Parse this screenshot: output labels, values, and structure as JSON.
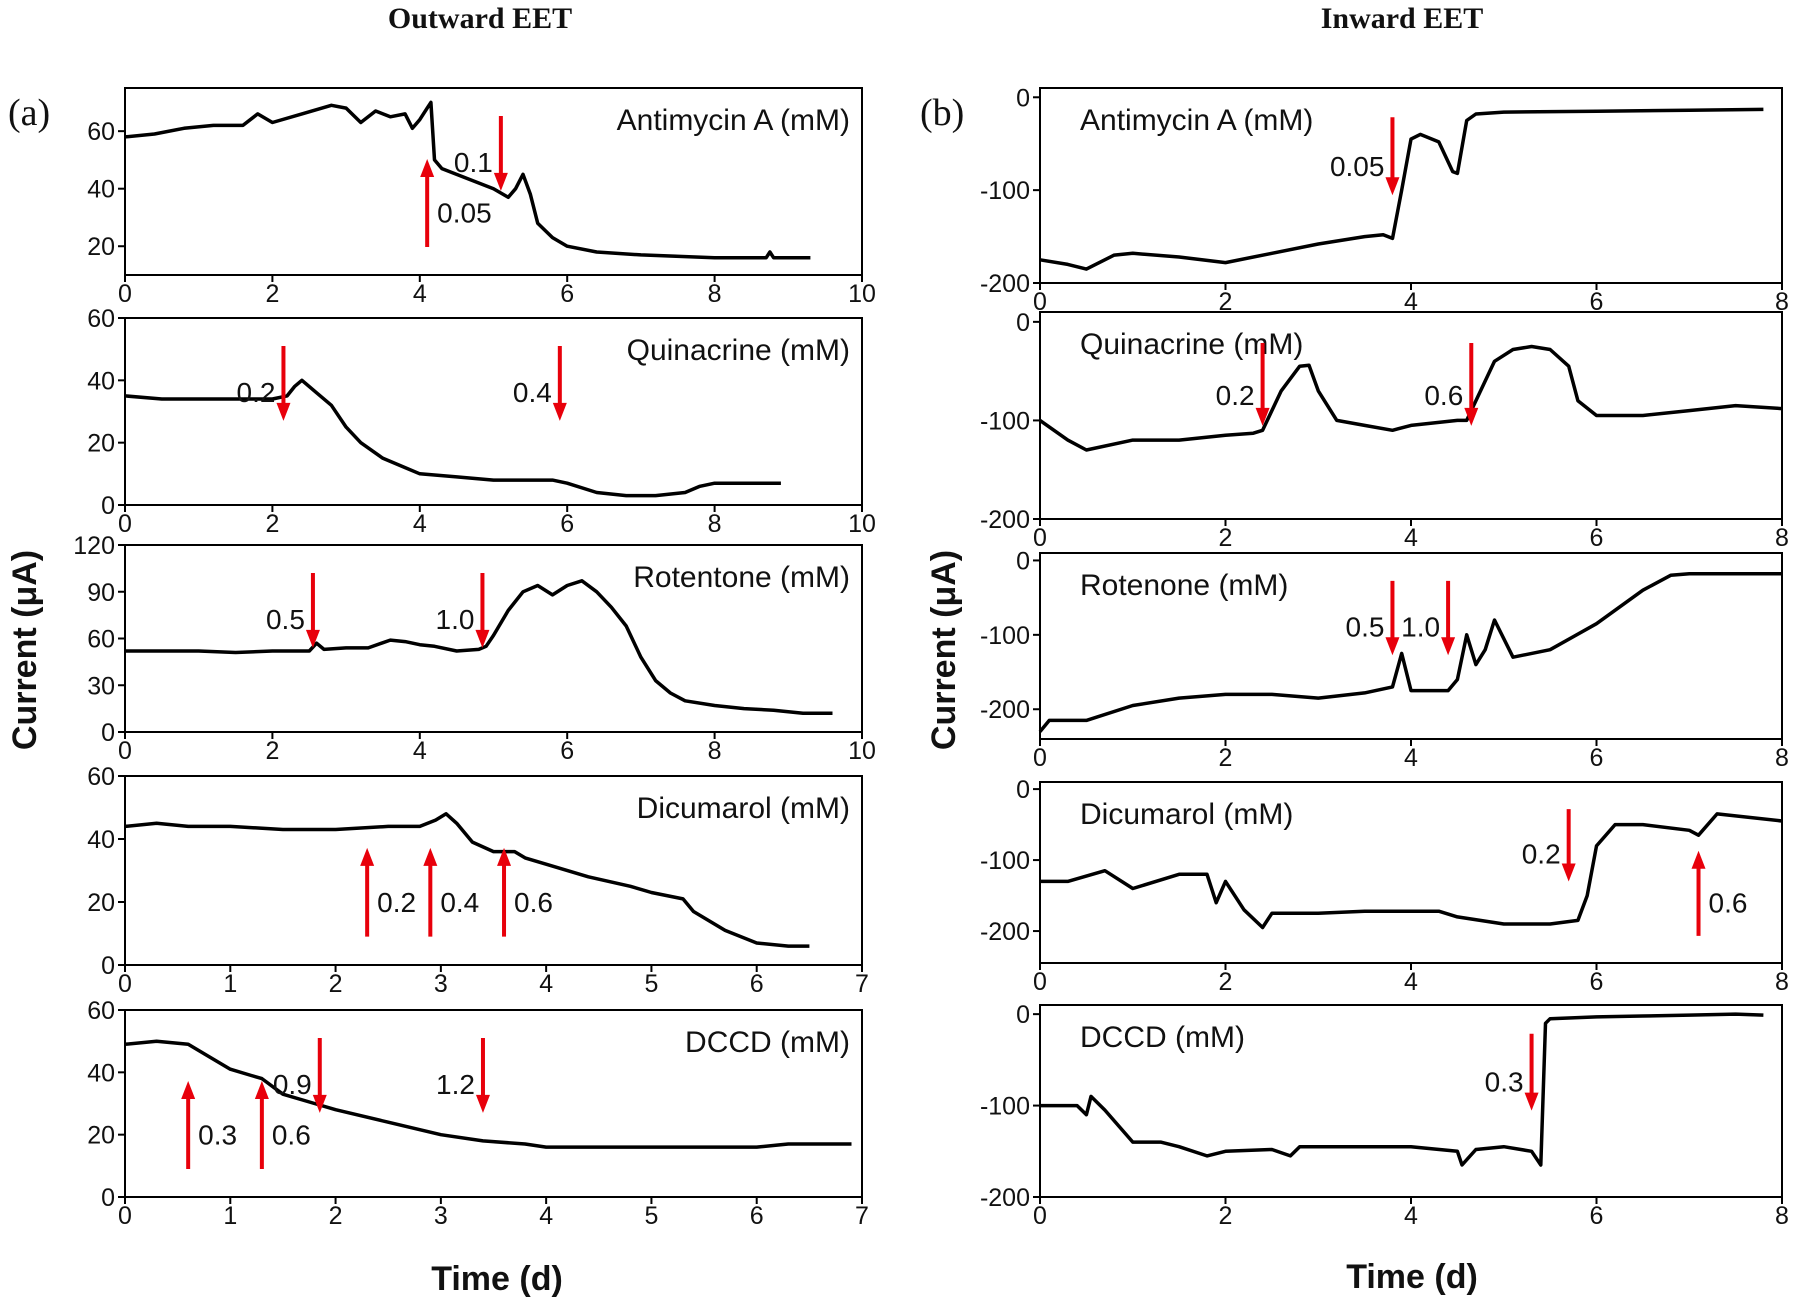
{
  "headers": {
    "left": "Outward EET",
    "right": "Inward EET"
  },
  "panel_labels": {
    "left": "(a)",
    "right": "(b)"
  },
  "axes_labels": {
    "left_x": "Time (d)",
    "right_x": "Time (d)",
    "left_y": "Current (μA)",
    "right_y": "Current (μA)"
  },
  "colors": {
    "trace": "#000000",
    "arrow": "#e8000b",
    "frame": "#000000"
  },
  "chart_data": [
    {
      "type": "line",
      "column": "left",
      "row": 0,
      "title": "Antimycin A (mM)",
      "xlim": [
        0,
        10
      ],
      "xticks": [
        0,
        2,
        4,
        6,
        8,
        10
      ],
      "ylim": [
        10,
        75
      ],
      "yticks": [
        20,
        40,
        60
      ],
      "series": [
        {
          "x": [
            0,
            0.4,
            0.8,
            1.2,
            1.6,
            1.8,
            2.0,
            2.4,
            2.8,
            3.0,
            3.2,
            3.4,
            3.6,
            3.8,
            3.9,
            4.0,
            4.1,
            4.15,
            4.2,
            4.3,
            4.6,
            5.0,
            5.2,
            5.3,
            5.4,
            5.5,
            5.6,
            5.8,
            6.0,
            6.4,
            7.0,
            8.0,
            8.7,
            8.75,
            8.8,
            9.3
          ],
          "y": [
            58,
            59,
            61,
            62,
            62,
            66,
            63,
            66,
            69,
            68,
            63,
            67,
            65,
            66,
            61,
            64,
            68,
            70,
            50,
            47,
            44,
            40,
            37,
            40,
            45,
            38,
            28,
            23,
            20,
            18,
            17,
            16,
            16,
            18,
            16,
            16
          ]
        }
      ],
      "annotations": [
        {
          "label": "0.05",
          "x": 4.1,
          "dir": "up"
        },
        {
          "label": "0.1",
          "x": 5.1,
          "dir": "down"
        }
      ]
    },
    {
      "type": "line",
      "column": "left",
      "row": 1,
      "title": "Quinacrine (mM)",
      "xlim": [
        0,
        10
      ],
      "xticks": [
        0,
        2,
        4,
        6,
        8,
        10
      ],
      "ylim": [
        0,
        60
      ],
      "yticks": [
        0,
        20,
        40,
        60
      ],
      "series": [
        {
          "x": [
            0,
            0.5,
            1.0,
            1.5,
            2.0,
            2.2,
            2.3,
            2.4,
            2.6,
            2.8,
            3.0,
            3.2,
            3.5,
            3.8,
            4.0,
            4.5,
            5.0,
            5.5,
            5.8,
            6.0,
            6.4,
            6.8,
            7.2,
            7.6,
            7.8,
            8.0,
            8.5,
            8.9
          ],
          "y": [
            35,
            34,
            34,
            34,
            34,
            35,
            38,
            40,
            36,
            32,
            25,
            20,
            15,
            12,
            10,
            9,
            8,
            8,
            8,
            7,
            4,
            3,
            3,
            4,
            6,
            7,
            7,
            7
          ]
        }
      ],
      "annotations": [
        {
          "label": "0.2",
          "x": 2.15,
          "dir": "down"
        },
        {
          "label": "0.4",
          "x": 5.9,
          "dir": "down"
        }
      ]
    },
    {
      "type": "line",
      "column": "left",
      "row": 2,
      "title": "Rotentone (mM)",
      "xlim": [
        0,
        10
      ],
      "xticks": [
        0,
        2,
        4,
        6,
        8,
        10
      ],
      "ylim": [
        0,
        120
      ],
      "yticks": [
        0,
        30,
        60,
        90,
        120
      ],
      "series": [
        {
          "x": [
            0,
            0.5,
            1.0,
            1.5,
            2.0,
            2.5,
            2.6,
            2.7,
            3.0,
            3.3,
            3.6,
            3.8,
            4.0,
            4.2,
            4.5,
            4.8,
            4.9,
            5.0,
            5.2,
            5.4,
            5.6,
            5.8,
            6.0,
            6.2,
            6.4,
            6.6,
            6.8,
            7.0,
            7.2,
            7.4,
            7.6,
            8.0,
            8.4,
            8.8,
            9.2,
            9.6
          ],
          "y": [
            52,
            52,
            52,
            51,
            52,
            52,
            57,
            53,
            54,
            54,
            59,
            58,
            56,
            55,
            52,
            53,
            55,
            62,
            78,
            90,
            94,
            88,
            94,
            97,
            90,
            80,
            68,
            48,
            33,
            25,
            20,
            17,
            15,
            14,
            12,
            12
          ]
        }
      ],
      "annotations": [
        {
          "label": "0.5",
          "x": 2.55,
          "dir": "down"
        },
        {
          "label": "1.0",
          "x": 4.85,
          "dir": "down"
        }
      ]
    },
    {
      "type": "line",
      "column": "left",
      "row": 3,
      "title": "Dicumarol (mM)",
      "xlim": [
        0,
        7
      ],
      "xticks": [
        0,
        1,
        2,
        3,
        4,
        5,
        6,
        7
      ],
      "ylim": [
        0,
        60
      ],
      "yticks": [
        0,
        20,
        40,
        60
      ],
      "series": [
        {
          "x": [
            0,
            0.3,
            0.6,
            1.0,
            1.5,
            2.0,
            2.5,
            2.8,
            2.95,
            3.05,
            3.15,
            3.3,
            3.5,
            3.7,
            3.8,
            4.0,
            4.4,
            4.8,
            5.0,
            5.3,
            5.4,
            5.7,
            6.0,
            6.3,
            6.5
          ],
          "y": [
            44,
            45,
            44,
            44,
            43,
            43,
            44,
            44,
            46,
            48,
            45,
            39,
            36,
            36,
            34,
            32,
            28,
            25,
            23,
            21,
            17,
            11,
            7,
            6,
            6
          ]
        }
      ],
      "annotations": [
        {
          "label": "0.2",
          "x": 2.3,
          "dir": "up"
        },
        {
          "label": "0.4",
          "x": 2.9,
          "dir": "up"
        },
        {
          "label": "0.6",
          "x": 3.6,
          "dir": "up"
        }
      ]
    },
    {
      "type": "line",
      "column": "left",
      "row": 4,
      "title": "DCCD (mM)",
      "xlim": [
        0,
        7
      ],
      "xticks": [
        0,
        1,
        2,
        3,
        4,
        5,
        6,
        7
      ],
      "ylim": [
        0,
        60
      ],
      "yticks": [
        0,
        20,
        40,
        60
      ],
      "series": [
        {
          "x": [
            0,
            0.3,
            0.6,
            0.8,
            1.0,
            1.2,
            1.3,
            1.5,
            1.8,
            2.0,
            2.5,
            3.0,
            3.4,
            3.8,
            4.0,
            4.5,
            5.0,
            5.5,
            6.0,
            6.3,
            6.5,
            6.9
          ],
          "y": [
            49,
            50,
            49,
            45,
            41,
            39,
            38,
            33,
            30,
            28,
            24,
            20,
            18,
            17,
            16,
            16,
            16,
            16,
            16,
            17,
            17,
            17
          ]
        }
      ],
      "annotations": [
        {
          "label": "0.3",
          "x": 0.6,
          "dir": "up"
        },
        {
          "label": "0.6",
          "x": 1.3,
          "dir": "up"
        },
        {
          "label": "0.9",
          "x": 1.85,
          "dir": "down"
        },
        {
          "label": "1.2",
          "x": 3.4,
          "dir": "down"
        }
      ]
    },
    {
      "type": "line",
      "column": "right",
      "row": 0,
      "title": "Antimycin A (mM)",
      "xlim": [
        0,
        8
      ],
      "xticks": [
        0,
        2,
        4,
        6,
        8
      ],
      "ylim": [
        -200,
        10
      ],
      "yticks": [
        -200,
        -100,
        0
      ],
      "series": [
        {
          "x": [
            0,
            0.3,
            0.5,
            0.8,
            1.0,
            1.5,
            2.0,
            2.5,
            3.0,
            3.5,
            3.7,
            3.8,
            3.9,
            4.0,
            4.1,
            4.3,
            4.45,
            4.5,
            4.6,
            4.7,
            5.0,
            6.0,
            7.0,
            7.8
          ],
          "y": [
            -175,
            -180,
            -185,
            -170,
            -168,
            -172,
            -178,
            -168,
            -158,
            -150,
            -148,
            -152,
            -100,
            -45,
            -40,
            -48,
            -80,
            -82,
            -25,
            -18,
            -16,
            -15,
            -14,
            -13
          ]
        }
      ],
      "annotations": [
        {
          "label": "0.05",
          "x": 3.8,
          "dir": "down"
        }
      ]
    },
    {
      "type": "line",
      "column": "right",
      "row": 1,
      "title": "Quinacrine (mM)",
      "xlim": [
        0,
        8
      ],
      "xticks": [
        0,
        2,
        4,
        6,
        8
      ],
      "ylim": [
        -200,
        10
      ],
      "yticks": [
        -200,
        -100,
        0
      ],
      "series": [
        {
          "x": [
            0,
            0.3,
            0.5,
            1.0,
            1.5,
            2.0,
            2.3,
            2.4,
            2.6,
            2.8,
            2.9,
            3.0,
            3.2,
            3.5,
            3.8,
            4.0,
            4.5,
            4.6,
            4.7,
            4.9,
            5.1,
            5.3,
            5.5,
            5.7,
            5.8,
            6.0,
            6.5,
            7.0,
            7.5,
            8.0
          ],
          "y": [
            -100,
            -120,
            -130,
            -120,
            -120,
            -115,
            -113,
            -110,
            -70,
            -45,
            -44,
            -70,
            -100,
            -105,
            -110,
            -105,
            -100,
            -100,
            -80,
            -40,
            -28,
            -25,
            -28,
            -45,
            -80,
            -95,
            -95,
            -90,
            -85,
            -88
          ]
        }
      ],
      "annotations": [
        {
          "label": "0.2",
          "x": 2.4,
          "dir": "down"
        },
        {
          "label": "0.6",
          "x": 4.65,
          "dir": "down"
        }
      ]
    },
    {
      "type": "line",
      "column": "right",
      "row": 2,
      "title": "Rotenone (mM)",
      "xlim": [
        0,
        8
      ],
      "xticks": [
        0,
        2,
        4,
        6,
        8
      ],
      "ylim": [
        -240,
        10
      ],
      "yticks": [
        -200,
        -100,
        0
      ],
      "series": [
        {
          "x": [
            0,
            0.1,
            0.5,
            1.0,
            1.5,
            2.0,
            2.5,
            3.0,
            3.5,
            3.8,
            3.9,
            4.0,
            4.1,
            4.4,
            4.5,
            4.6,
            4.7,
            4.8,
            4.9,
            5.1,
            5.5,
            6.0,
            6.5,
            6.8,
            7.0,
            7.5,
            8.0
          ],
          "y": [
            -230,
            -215,
            -215,
            -195,
            -185,
            -180,
            -180,
            -185,
            -178,
            -170,
            -125,
            -175,
            -175,
            -175,
            -160,
            -100,
            -140,
            -120,
            -80,
            -130,
            -120,
            -85,
            -40,
            -20,
            -18,
            -18,
            -18
          ]
        }
      ],
      "annotations": [
        {
          "label": "0.5",
          "x": 3.8,
          "dir": "down"
        },
        {
          "label": "1.0",
          "x": 4.4,
          "dir": "down"
        }
      ]
    },
    {
      "type": "line",
      "column": "right",
      "row": 3,
      "title": "Dicumarol (mM)",
      "xlim": [
        0,
        8
      ],
      "xticks": [
        0,
        2,
        4,
        6,
        8
      ],
      "ylim": [
        -245,
        10
      ],
      "yticks": [
        -200,
        -100,
        0
      ],
      "series": [
        {
          "x": [
            0,
            0.3,
            0.7,
            1.0,
            1.5,
            1.8,
            1.9,
            2.0,
            2.2,
            2.4,
            2.5,
            3.0,
            3.5,
            4.0,
            4.3,
            4.5,
            5.0,
            5.5,
            5.8,
            5.9,
            6.0,
            6.2,
            6.5,
            7.0,
            7.1,
            7.3,
            8.0
          ],
          "y": [
            -130,
            -130,
            -115,
            -140,
            -120,
            -120,
            -160,
            -130,
            -170,
            -195,
            -175,
            -175,
            -172,
            -172,
            -172,
            -180,
            -190,
            -190,
            -185,
            -150,
            -80,
            -50,
            -50,
            -58,
            -65,
            -35,
            -45
          ]
        }
      ],
      "annotations": [
        {
          "label": "0.2",
          "x": 5.7,
          "dir": "down"
        },
        {
          "label": "0.6",
          "x": 7.1,
          "dir": "up"
        }
      ]
    },
    {
      "type": "line",
      "column": "right",
      "row": 4,
      "title": "DCCD (mM)",
      "xlim": [
        0,
        8
      ],
      "xticks": [
        0,
        2,
        4,
        6,
        8
      ],
      "ylim": [
        -200,
        10
      ],
      "yticks": [
        -200,
        -100,
        0
      ],
      "series": [
        {
          "x": [
            0,
            0.4,
            0.5,
            0.55,
            0.7,
            1.0,
            1.3,
            1.5,
            1.8,
            2.0,
            2.5,
            2.7,
            2.8,
            3.0,
            3.5,
            4.0,
            4.5,
            4.55,
            4.7,
            5.0,
            5.3,
            5.4,
            5.45,
            5.5,
            6.0,
            6.5,
            7.0,
            7.5,
            7.8
          ],
          "y": [
            -100,
            -100,
            -110,
            -90,
            -105,
            -140,
            -140,
            -145,
            -155,
            -150,
            -148,
            -155,
            -145,
            -145,
            -145,
            -145,
            -150,
            -165,
            -148,
            -145,
            -150,
            -165,
            -10,
            -5,
            -3,
            -2,
            -1,
            0,
            -1
          ]
        }
      ],
      "annotations": [
        {
          "label": "0.3",
          "x": 5.3,
          "dir": "down"
        }
      ]
    }
  ]
}
